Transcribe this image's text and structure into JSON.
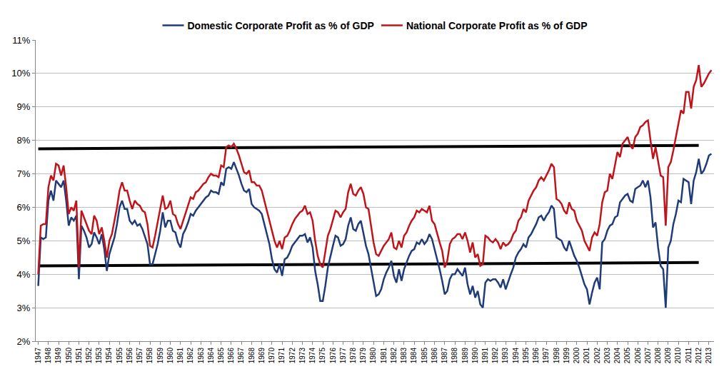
{
  "chart_data": {
    "type": "line",
    "categories": [
      "1947",
      null,
      null,
      null,
      "1948",
      null,
      null,
      null,
      "1949",
      null,
      null,
      null,
      "1950",
      null,
      null,
      null,
      "1951",
      null,
      null,
      null,
      "1952",
      null,
      null,
      null,
      "1953",
      null,
      null,
      null,
      "1954",
      null,
      null,
      null,
      "1955",
      null,
      null,
      null,
      "1956",
      null,
      null,
      null,
      "1957",
      null,
      null,
      null,
      "1958",
      null,
      null,
      null,
      "1959",
      null,
      null,
      null,
      "1960",
      null,
      null,
      null,
      "1961",
      null,
      null,
      null,
      "1962",
      null,
      null,
      null,
      "1963",
      null,
      null,
      null,
      "1964",
      null,
      null,
      null,
      "1965",
      null,
      null,
      null,
      "1966",
      null,
      null,
      null,
      "1967",
      null,
      null,
      null,
      "1968",
      null,
      null,
      null,
      "1969",
      null,
      null,
      null,
      "1970",
      null,
      null,
      null,
      "1971",
      null,
      null,
      null,
      "1972",
      null,
      null,
      null,
      "1973",
      null,
      null,
      null,
      "1974",
      null,
      null,
      null,
      "1975",
      null,
      null,
      null,
      "1976",
      null,
      null,
      null,
      "1977",
      null,
      null,
      null,
      "1978",
      null,
      null,
      null,
      "1979",
      null,
      null,
      null,
      "1980",
      null,
      null,
      null,
      "1981",
      null,
      null,
      null,
      "1982",
      null,
      null,
      null,
      "1983",
      null,
      null,
      null,
      "1984",
      null,
      null,
      null,
      "1985",
      null,
      null,
      null,
      "1986",
      null,
      null,
      null,
      "1987",
      null,
      null,
      null,
      "1988",
      null,
      null,
      null,
      "1989",
      null,
      null,
      null,
      "1990",
      null,
      null,
      null,
      "1991",
      null,
      null,
      null,
      "1992",
      null,
      null,
      null,
      "1993",
      null,
      null,
      null,
      "1994",
      null,
      null,
      null,
      "1995",
      null,
      null,
      null,
      "1996",
      null,
      null,
      null,
      "1997",
      null,
      null,
      null,
      "1998",
      null,
      null,
      null,
      "1999",
      null,
      null,
      null,
      "2000",
      null,
      null,
      null,
      "2001",
      null,
      null,
      null,
      "2002",
      null,
      null,
      null,
      "2003",
      null,
      null,
      null,
      "2004",
      null,
      null,
      null,
      "2005",
      null,
      null,
      null,
      "2006",
      null,
      null,
      null,
      "2007",
      null,
      null,
      null,
      "2008",
      null,
      null,
      null,
      "2009",
      null,
      null,
      null,
      "2010",
      null,
      null,
      null,
      "2011",
      null,
      null,
      null,
      "2012",
      null,
      null,
      null,
      "2013",
      null
    ],
    "series": [
      {
        "name": "Domestic Corporate Profit as % of GDP",
        "color": "#1f3b78",
        "values": [
          3.65,
          5.1,
          5.05,
          5.1,
          6.2,
          6.5,
          6.2,
          6.8,
          6.7,
          6.6,
          6.8,
          6.2,
          5.45,
          5.7,
          5.6,
          5.75,
          3.85,
          5.45,
          5.3,
          5.1,
          4.8,
          4.9,
          5.25,
          5.1,
          4.9,
          5.2,
          4.75,
          4.1,
          4.6,
          4.85,
          5.1,
          5.5,
          6.0,
          6.2,
          5.95,
          5.95,
          5.6,
          5.5,
          5.6,
          5.45,
          5.5,
          5.35,
          5.1,
          4.9,
          4.3,
          4.3,
          4.6,
          4.9,
          5.3,
          5.85,
          5.4,
          5.6,
          5.6,
          5.3,
          5.25,
          4.95,
          4.8,
          5.2,
          5.35,
          5.55,
          5.8,
          5.75,
          5.9,
          6.0,
          6.1,
          6.2,
          6.3,
          6.35,
          6.5,
          6.45,
          6.45,
          6.4,
          6.75,
          6.65,
          7.15,
          7.2,
          7.15,
          7.35,
          7.15,
          6.95,
          6.7,
          6.5,
          6.45,
          6.55,
          6.1,
          6.0,
          5.95,
          5.9,
          5.8,
          5.5,
          5.2,
          4.9,
          4.45,
          4.15,
          4.05,
          4.3,
          3.95,
          4.45,
          4.5,
          4.65,
          4.85,
          4.95,
          5.05,
          5.15,
          5.15,
          5.2,
          4.95,
          5.1,
          4.8,
          4.1,
          3.7,
          3.2,
          3.2,
          3.65,
          4.2,
          4.55,
          4.85,
          5.15,
          5.1,
          4.85,
          4.9,
          5.05,
          5.45,
          5.7,
          5.35,
          5.3,
          5.5,
          5.6,
          5.25,
          4.85,
          4.6,
          4.2,
          3.8,
          3.35,
          3.4,
          3.55,
          3.85,
          4.05,
          4.2,
          4.4,
          3.95,
          3.75,
          4.15,
          3.8,
          4.15,
          4.35,
          4.55,
          4.7,
          4.75,
          4.95,
          4.9,
          5.05,
          4.9,
          5.0,
          5.2,
          5.05,
          4.75,
          4.5,
          4.15,
          3.8,
          3.4,
          3.5,
          3.85,
          4.0,
          4.0,
          4.15,
          4.05,
          3.95,
          4.2,
          3.7,
          3.4,
          3.65,
          3.3,
          3.5,
          3.1,
          3.0,
          3.75,
          3.85,
          3.8,
          3.85,
          3.85,
          3.75,
          3.6,
          3.85,
          3.55,
          3.8,
          4.0,
          4.2,
          4.5,
          4.65,
          4.75,
          4.9,
          4.8,
          5.1,
          5.2,
          5.35,
          5.5,
          5.7,
          5.75,
          5.6,
          5.75,
          5.85,
          6.05,
          5.95,
          5.1,
          5.05,
          5.0,
          4.8,
          4.7,
          5.0,
          4.75,
          4.55,
          4.4,
          4.2,
          3.95,
          3.7,
          3.55,
          3.1,
          3.45,
          3.75,
          3.9,
          3.55,
          4.95,
          5.05,
          5.3,
          5.45,
          5.5,
          5.7,
          5.75,
          6.15,
          6.25,
          6.35,
          6.4,
          6.2,
          6.15,
          6.55,
          6.6,
          6.65,
          6.8,
          6.6,
          6.8,
          6.3,
          5.4,
          5.55,
          4.8,
          4.25,
          4.15,
          3.0,
          4.8,
          5.0,
          5.5,
          5.8,
          6.2,
          6.15,
          6.85,
          6.8,
          6.75,
          6.1,
          6.8,
          7.05,
          7.45,
          7.0,
          7.1,
          7.3,
          7.55,
          7.6
        ]
      },
      {
        "name": "National Corporate Profit as % of GDP",
        "color": "#c0141b",
        "values": [
          4.0,
          5.45,
          5.5,
          5.5,
          6.6,
          6.95,
          6.8,
          7.3,
          7.25,
          6.95,
          7.25,
          6.6,
          5.8,
          6.0,
          5.9,
          6.2,
          4.2,
          5.9,
          5.7,
          5.5,
          5.3,
          5.2,
          5.75,
          5.6,
          5.2,
          5.4,
          5.0,
          4.5,
          5.0,
          5.2,
          5.6,
          6.0,
          6.5,
          6.75,
          6.5,
          6.5,
          6.2,
          5.95,
          6.2,
          6.1,
          6.05,
          5.9,
          5.85,
          5.5,
          4.85,
          4.8,
          5.15,
          5.55,
          5.9,
          6.35,
          5.95,
          6.0,
          6.2,
          5.8,
          5.75,
          5.5,
          5.35,
          5.6,
          5.85,
          6.1,
          6.3,
          6.25,
          6.45,
          6.5,
          6.6,
          6.7,
          6.75,
          6.9,
          7.0,
          6.95,
          6.95,
          6.9,
          7.25,
          7.2,
          7.8,
          7.85,
          7.8,
          7.9,
          7.75,
          7.55,
          7.3,
          7.05,
          7.0,
          7.1,
          6.75,
          6.75,
          6.65,
          6.65,
          6.5,
          6.2,
          5.9,
          5.6,
          5.25,
          5.0,
          4.8,
          5.0,
          4.75,
          5.1,
          5.15,
          5.3,
          5.5,
          5.65,
          5.75,
          5.85,
          5.9,
          6.05,
          5.8,
          5.85,
          5.6,
          5.0,
          4.55,
          4.3,
          4.2,
          4.65,
          5.15,
          5.35,
          5.6,
          5.9,
          5.85,
          5.7,
          5.85,
          5.95,
          6.45,
          6.7,
          6.4,
          6.35,
          6.5,
          6.6,
          6.4,
          6.0,
          5.95,
          5.45,
          4.95,
          4.6,
          4.55,
          4.7,
          4.85,
          4.95,
          5.05,
          5.25,
          4.8,
          4.75,
          5.0,
          4.8,
          5.15,
          5.25,
          5.45,
          5.6,
          5.7,
          5.9,
          5.85,
          5.95,
          5.9,
          5.85,
          6.05,
          5.6,
          5.5,
          5.2,
          4.95,
          4.7,
          4.2,
          4.4,
          4.9,
          5.05,
          5.1,
          5.2,
          5.2,
          5.05,
          5.25,
          5.0,
          4.65,
          4.95,
          4.5,
          4.6,
          4.25,
          4.3,
          5.15,
          5.1,
          5.0,
          4.95,
          5.05,
          4.95,
          4.75,
          4.95,
          4.85,
          4.9,
          5.0,
          5.2,
          5.3,
          5.6,
          5.7,
          5.95,
          5.85,
          6.2,
          6.35,
          6.5,
          6.6,
          6.8,
          6.9,
          6.8,
          6.95,
          7.1,
          7.3,
          7.2,
          6.25,
          6.2,
          6.1,
          5.9,
          5.8,
          6.15,
          5.95,
          5.9,
          5.6,
          5.45,
          5.3,
          5.0,
          4.85,
          4.7,
          5.1,
          5.25,
          5.15,
          5.5,
          6.15,
          6.45,
          6.5,
          7.0,
          6.85,
          7.25,
          7.65,
          7.5,
          7.9,
          8.0,
          8.1,
          7.85,
          7.75,
          8.1,
          8.2,
          8.4,
          8.45,
          8.55,
          8.6,
          8.0,
          7.45,
          7.8,
          7.35,
          6.95,
          6.9,
          5.45,
          7.2,
          7.35,
          7.7,
          8.1,
          8.5,
          8.9,
          8.8,
          9.45,
          9.45,
          8.95,
          9.6,
          9.8,
          10.25,
          9.6,
          9.7,
          9.85,
          10.0,
          10.1
        ]
      }
    ],
    "reference_lines": [
      {
        "color": "#000000",
        "x": [
          "1947",
          "2012"
        ],
        "values": [
          7.75,
          7.85
        ]
      },
      {
        "color": "#000000",
        "x": [
          "1947",
          "2012"
        ],
        "values": [
          4.25,
          4.35
        ]
      }
    ],
    "ylim": [
      2,
      11
    ],
    "yticks": [
      {
        "value": 2,
        "label": "2%"
      },
      {
        "value": 3,
        "label": "3%"
      },
      {
        "value": 4,
        "label": "4%"
      },
      {
        "value": 5,
        "label": "5%"
      },
      {
        "value": 6,
        "label": "6%"
      },
      {
        "value": 7,
        "label": "7%"
      },
      {
        "value": 8,
        "label": "8%"
      },
      {
        "value": 9,
        "label": "9%"
      },
      {
        "value": 10,
        "label": "10%"
      },
      {
        "value": 11,
        "label": "11%"
      }
    ],
    "grid": true,
    "legend": "top"
  }
}
